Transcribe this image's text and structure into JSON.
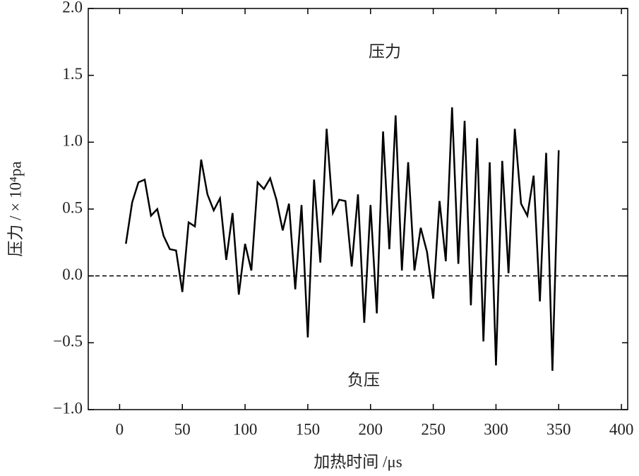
{
  "chart_data": {
    "type": "line",
    "x_label": "加热时间 /μs",
    "y_label": "压力 / × 10⁴pa",
    "annotations": [
      "压力",
      "负压"
    ],
    "x": [
      5,
      10,
      15,
      20,
      25,
      30,
      35,
      40,
      45,
      50,
      55,
      60,
      65,
      70,
      75,
      80,
      85,
      90,
      95,
      100,
      105,
      110,
      115,
      120,
      125,
      130,
      135,
      140,
      145,
      150,
      155,
      160,
      165,
      170,
      175,
      180,
      185,
      190,
      195,
      200,
      205,
      210,
      215,
      220,
      225,
      230,
      235,
      240,
      245,
      250,
      255,
      260,
      265,
      270,
      275,
      280,
      285,
      290,
      295,
      300,
      305,
      310,
      315,
      320,
      325,
      330,
      335,
      340,
      345,
      350
    ],
    "series": [
      {
        "color": "#000000",
        "values": [
          0.24,
          0.55,
          0.7,
          0.72,
          0.45,
          0.5,
          0.3,
          0.2,
          0.19,
          -0.12,
          0.4,
          0.37,
          0.87,
          0.61,
          0.49,
          0.58,
          0.12,
          0.47,
          -0.14,
          0.24,
          0.04,
          0.7,
          0.65,
          0.73,
          0.57,
          0.34,
          0.54,
          -0.1,
          0.53,
          -0.46,
          0.72,
          0.1,
          1.1,
          0.47,
          0.57,
          0.56,
          0.07,
          0.61,
          -0.35,
          0.53,
          -0.28,
          1.08,
          0.2,
          1.2,
          0.04,
          0.85,
          0.04,
          0.36,
          0.18,
          -0.17,
          0.56,
          0.11,
          1.26,
          0.09,
          1.16,
          -0.22,
          1.03,
          -0.49,
          0.85,
          -0.67,
          0.86,
          0.02,
          1.1,
          0.54,
          0.45,
          0.75,
          -0.19,
          0.92,
          -0.71,
          0.94
        ]
      }
    ],
    "xlim": [
      -25,
      405
    ],
    "ylim": [
      -1,
      2
    ],
    "xticks": [
      0,
      50,
      100,
      150,
      200,
      250,
      300,
      350,
      400
    ],
    "yticks": [
      {
        "value": 2,
        "label": "2.0"
      },
      {
        "value": 1.5,
        "label": "1.5"
      },
      {
        "value": 1,
        "label": "1.0"
      },
      {
        "value": 0.5,
        "label": "0.5"
      },
      {
        "value": 0,
        "label": "0.0"
      },
      {
        "value": -0.5,
        "label": "−0.5"
      },
      {
        "value": -1,
        "label": "−1.0"
      }
    ],
    "reference_line": {
      "y": 0,
      "style": "dashed"
    }
  }
}
